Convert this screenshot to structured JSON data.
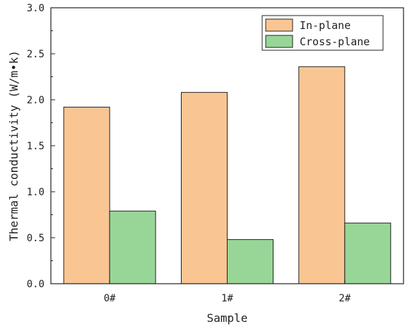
{
  "chart_data": {
    "type": "bar",
    "categories": [
      "0#",
      "1#",
      "2#"
    ],
    "series": [
      {
        "name": "In-plane",
        "values": [
          1.92,
          2.08,
          2.36
        ],
        "color": "#f9c693"
      },
      {
        "name": "Cross-plane",
        "values": [
          0.79,
          0.48,
          0.66
        ],
        "color": "#98d698"
      }
    ],
    "xlabel": "Sample",
    "ylabel": "Thermal conductivity (W/m•k)",
    "ylim": [
      0,
      3.0
    ],
    "yticks": [
      "0.0",
      "0.5",
      "1.0",
      "1.5",
      "2.0",
      "2.5",
      "3.0"
    ],
    "grid": false,
    "legend_position": "top-right"
  }
}
